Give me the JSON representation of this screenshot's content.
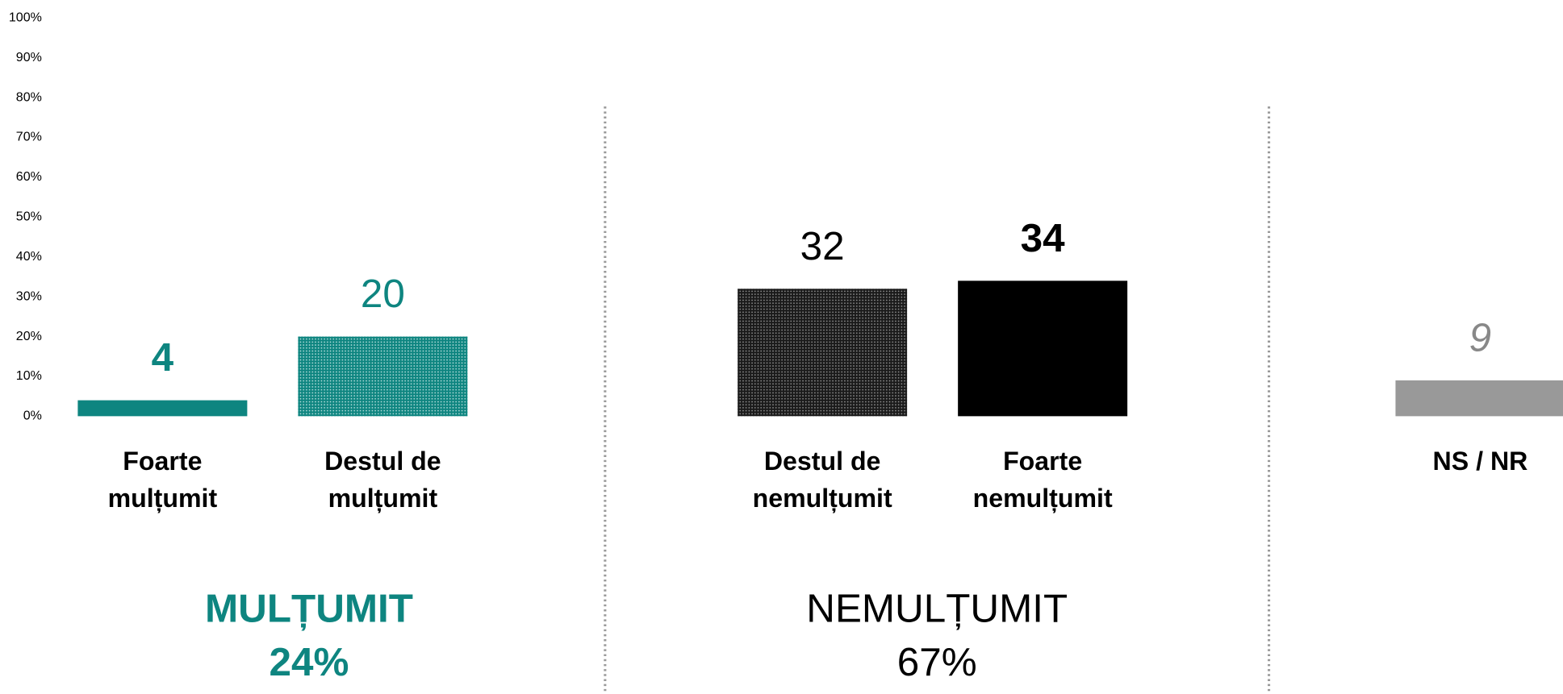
{
  "chart_data": {
    "type": "bar",
    "categories": [
      "Foarte mulțumit",
      "Destul de mulțumit",
      "Destul de nemulțumit",
      "Foarte nemulțumit",
      "NS / NR"
    ],
    "values": [
      4,
      20,
      32,
      34,
      9
    ],
    "colors": [
      "#0e8580",
      "#0e8580",
      "#222222",
      "#000000",
      "#999999"
    ],
    "patterns": [
      null,
      "dots",
      "dots",
      null,
      null
    ],
    "ylim": [
      0,
      100
    ],
    "yticks": [
      {
        "value": 0,
        "label": "0%"
      },
      {
        "value": 10,
        "label": "10%"
      },
      {
        "value": 20,
        "label": "20%"
      },
      {
        "value": 30,
        "label": "30%"
      },
      {
        "value": 40,
        "label": "40%"
      },
      {
        "value": 50,
        "label": "50%"
      },
      {
        "value": 60,
        "label": "60%"
      },
      {
        "value": 70,
        "label": "70%"
      },
      {
        "value": 80,
        "label": "80%"
      },
      {
        "value": 90,
        "label": "90%"
      },
      {
        "value": 100,
        "label": "100%"
      }
    ],
    "groups": [
      {
        "label": "MULȚUMIT",
        "total": "24%"
      },
      {
        "label": "NEMULȚUMIT",
        "total": "67%"
      }
    ]
  }
}
